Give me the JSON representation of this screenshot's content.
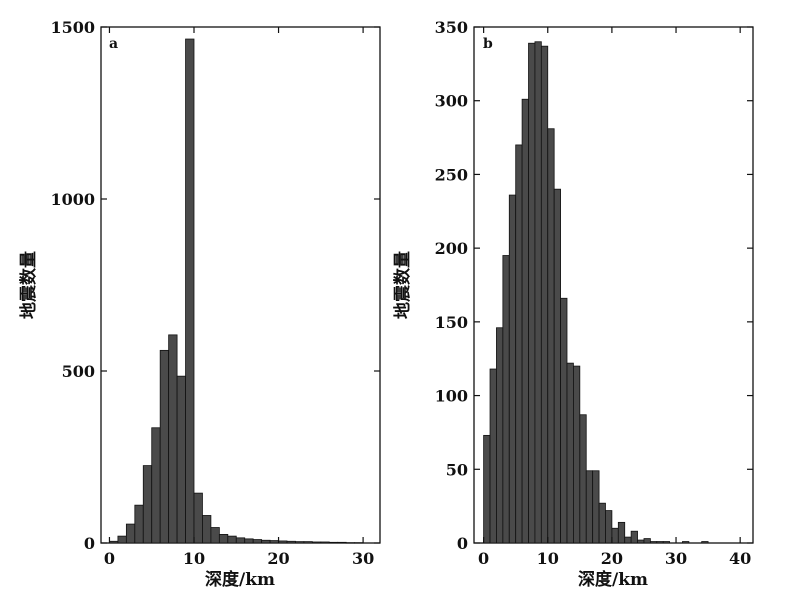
{
  "chart_data": [
    {
      "type": "bar",
      "panel_label": "a",
      "xlabel": "深度/km",
      "ylabel": "地震数量",
      "xlim": [
        -1,
        32
      ],
      "ylim": [
        0,
        1500
      ],
      "xticks": [
        0,
        10,
        20,
        30
      ],
      "yticks": [
        0,
        500,
        1000,
        1500
      ],
      "bin_width": 1,
      "bar_color": "#4a4a4a",
      "edge_color": "#111111",
      "bins": [
        {
          "x0": 0,
          "value": 5
        },
        {
          "x0": 1,
          "value": 20
        },
        {
          "x0": 2,
          "value": 55
        },
        {
          "x0": 3,
          "value": 110
        },
        {
          "x0": 4,
          "value": 225
        },
        {
          "x0": 5,
          "value": 335
        },
        {
          "x0": 6,
          "value": 560
        },
        {
          "x0": 7,
          "value": 605
        },
        {
          "x0": 8,
          "value": 485
        },
        {
          "x0": 9,
          "value": 1465
        },
        {
          "x0": 10,
          "value": 145
        },
        {
          "x0": 11,
          "value": 80
        },
        {
          "x0": 12,
          "value": 45
        },
        {
          "x0": 13,
          "value": 25
        },
        {
          "x0": 14,
          "value": 20
        },
        {
          "x0": 15,
          "value": 15
        },
        {
          "x0": 16,
          "value": 12
        },
        {
          "x0": 17,
          "value": 10
        },
        {
          "x0": 18,
          "value": 8
        },
        {
          "x0": 19,
          "value": 7
        },
        {
          "x0": 20,
          "value": 6
        },
        {
          "x0": 21,
          "value": 5
        },
        {
          "x0": 22,
          "value": 4
        },
        {
          "x0": 23,
          "value": 4
        },
        {
          "x0": 24,
          "value": 3
        },
        {
          "x0": 25,
          "value": 3
        },
        {
          "x0": 26,
          "value": 2
        },
        {
          "x0": 27,
          "value": 2
        },
        {
          "x0": 28,
          "value": 1
        },
        {
          "x0": 29,
          "value": 1
        }
      ]
    },
    {
      "type": "bar",
      "panel_label": "b",
      "xlabel": "深度/km",
      "ylabel": "地震数量",
      "xlim": [
        -1.5,
        42
      ],
      "ylim": [
        0,
        350
      ],
      "xticks": [
        0,
        10,
        20,
        30,
        40
      ],
      "yticks": [
        0,
        50,
        100,
        150,
        200,
        250,
        300,
        350
      ],
      "bin_width": 1,
      "bar_color": "#4a4a4a",
      "edge_color": "#111111",
      "bins": [
        {
          "x0": 0,
          "value": 73
        },
        {
          "x0": 1,
          "value": 118
        },
        {
          "x0": 2,
          "value": 146
        },
        {
          "x0": 3,
          "value": 195
        },
        {
          "x0": 4,
          "value": 236
        },
        {
          "x0": 5,
          "value": 270
        },
        {
          "x0": 6,
          "value": 301
        },
        {
          "x0": 7,
          "value": 339
        },
        {
          "x0": 8,
          "value": 340
        },
        {
          "x0": 9,
          "value": 337
        },
        {
          "x0": 10,
          "value": 281
        },
        {
          "x0": 11,
          "value": 240
        },
        {
          "x0": 12,
          "value": 166
        },
        {
          "x0": 13,
          "value": 122
        },
        {
          "x0": 14,
          "value": 120
        },
        {
          "x0": 15,
          "value": 87
        },
        {
          "x0": 16,
          "value": 49
        },
        {
          "x0": 17,
          "value": 49
        },
        {
          "x0": 18,
          "value": 27
        },
        {
          "x0": 19,
          "value": 22
        },
        {
          "x0": 20,
          "value": 10
        },
        {
          "x0": 21,
          "value": 14
        },
        {
          "x0": 22,
          "value": 4
        },
        {
          "x0": 23,
          "value": 8
        },
        {
          "x0": 24,
          "value": 2
        },
        {
          "x0": 25,
          "value": 3
        },
        {
          "x0": 26,
          "value": 1
        },
        {
          "x0": 27,
          "value": 1
        },
        {
          "x0": 28,
          "value": 1
        },
        {
          "x0": 29,
          "value": 0
        },
        {
          "x0": 30,
          "value": 0
        },
        {
          "x0": 31,
          "value": 1
        },
        {
          "x0": 32,
          "value": 0
        },
        {
          "x0": 33,
          "value": 0
        },
        {
          "x0": 34,
          "value": 1
        },
        {
          "x0": 35,
          "value": 0
        }
      ]
    }
  ]
}
